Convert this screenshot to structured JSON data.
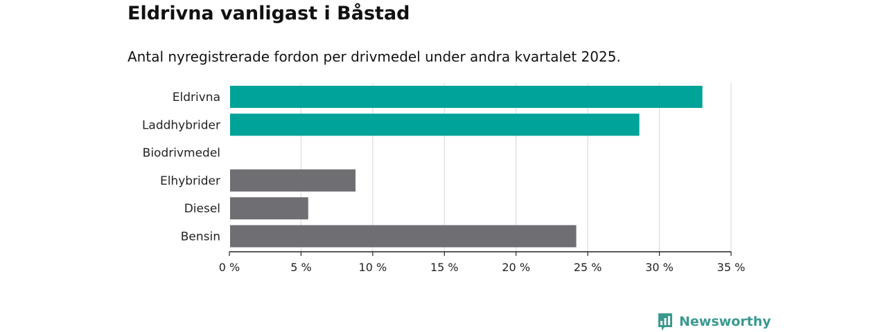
{
  "header": {
    "title": "Eldrivna vanligast i Båstad",
    "subtitle": "Antal nyregistrerade fordon per drivmedel under andra kvartalet 2025."
  },
  "brand": {
    "name": "Newsworthy",
    "icon": "newsworthy-logo-icon",
    "color": "#3a9a90"
  },
  "chart_data": {
    "type": "bar",
    "orientation": "horizontal",
    "categories": [
      "Eldrivna",
      "Laddhybrider",
      "Biodrivmedel",
      "Elhybrider",
      "Diesel",
      "Bensin"
    ],
    "values": [
      33.0,
      28.6,
      0,
      8.8,
      5.5,
      24.2
    ],
    "colors": [
      "#00a398",
      "#00a398",
      "#6f6e73",
      "#6f6e73",
      "#6f6e73",
      "#6f6e73"
    ],
    "xlim": [
      0,
      35
    ],
    "xticks": [
      0,
      5,
      10,
      15,
      20,
      25,
      30,
      35
    ],
    "xtick_labels": [
      "0 %",
      "5 %",
      "10 %",
      "15 %",
      "20 %",
      "25 %",
      "30 %",
      "35 %"
    ],
    "grid": true
  }
}
